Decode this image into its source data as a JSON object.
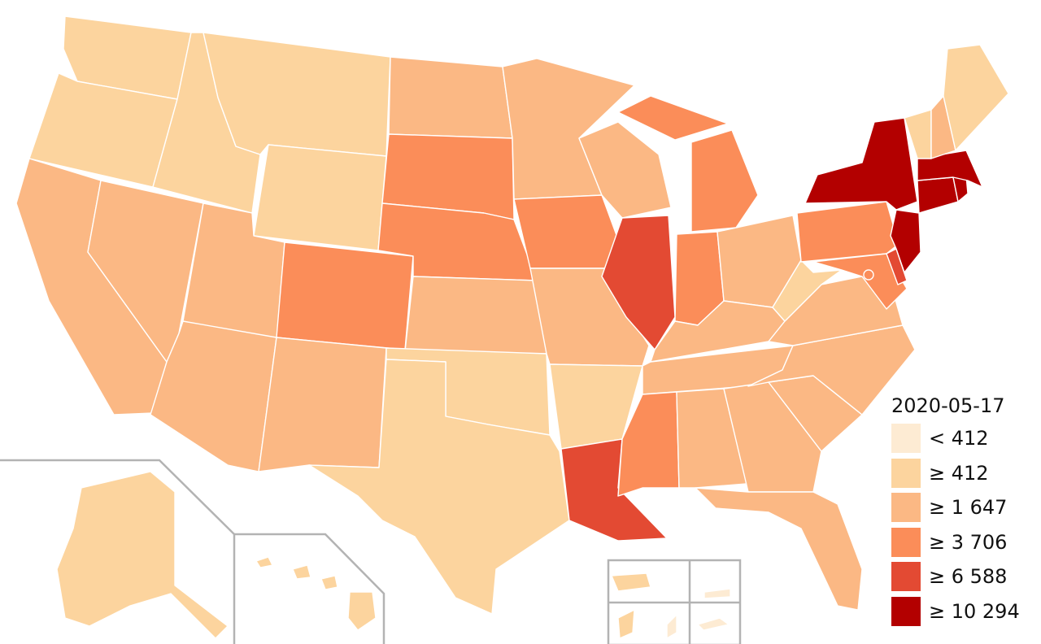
{
  "map": {
    "date": "2020-05-17",
    "legend": [
      {
        "label": "< 412",
        "color": "#fdebd3"
      },
      {
        "label": "≥ 412",
        "color": "#fcd49e"
      },
      {
        "label": "≥ 1 647",
        "color": "#fbb884"
      },
      {
        "label": "≥ 3 706",
        "color": "#fb8d59"
      },
      {
        "label": "≥ 6 588",
        "color": "#e34a33"
      },
      {
        "label": "≥ 10 294",
        "color": "#b30000"
      }
    ],
    "states": {
      "WA": "≥ 412",
      "OR": "≥ 412",
      "CA": "≥ 1 647",
      "NV": "≥ 1 647",
      "ID": "≥ 412",
      "MT": "≥ 412",
      "WY": "≥ 412",
      "UT": "≥ 1 647",
      "AZ": "≥ 1 647",
      "CO": "≥ 3 706",
      "NM": "≥ 1 647",
      "ND": "≥ 1 647",
      "SD": "≥ 3 706",
      "NE": "≥ 3 706",
      "KS": "≥ 1 647",
      "OK": "≥ 412",
      "TX": "≥ 412",
      "MN": "≥ 1 647",
      "IA": "≥ 3 706",
      "MO": "≥ 1 647",
      "AR": "≥ 412",
      "LA": "≥ 6 588",
      "WI": "≥ 1 647",
      "IL": "≥ 6 588",
      "MI": "≥ 3 706",
      "IN": "≥ 3 706",
      "OH": "≥ 1 647",
      "KY": "≥ 1 647",
      "TN": "≥ 1 647",
      "MS": "≥ 3 706",
      "AL": "≥ 1 647",
      "GA": "≥ 1 647",
      "FL": "≥ 1 647",
      "SC": "≥ 1 647",
      "NC": "≥ 1 647",
      "VA": "≥ 1 647",
      "WV": "≥ 412",
      "PA": "≥ 3 706",
      "NY": "≥ 10 294",
      "NJ": "≥ 10 294",
      "DE": "≥ 6 588",
      "MD": "≥ 3 706",
      "DC": "≥ 3 706",
      "CT": "≥ 10 294",
      "RI": "≥ 10 294",
      "MA": "≥ 10 294",
      "VT": "≥ 412",
      "NH": "≥ 1 647",
      "ME": "≥ 412",
      "AK": "≥ 412",
      "HI": "≥ 412",
      "PR": "≥ 412",
      "GU": "≥ 412",
      "MP": "< 412",
      "VI": "< 412",
      "AS": "< 412"
    }
  }
}
